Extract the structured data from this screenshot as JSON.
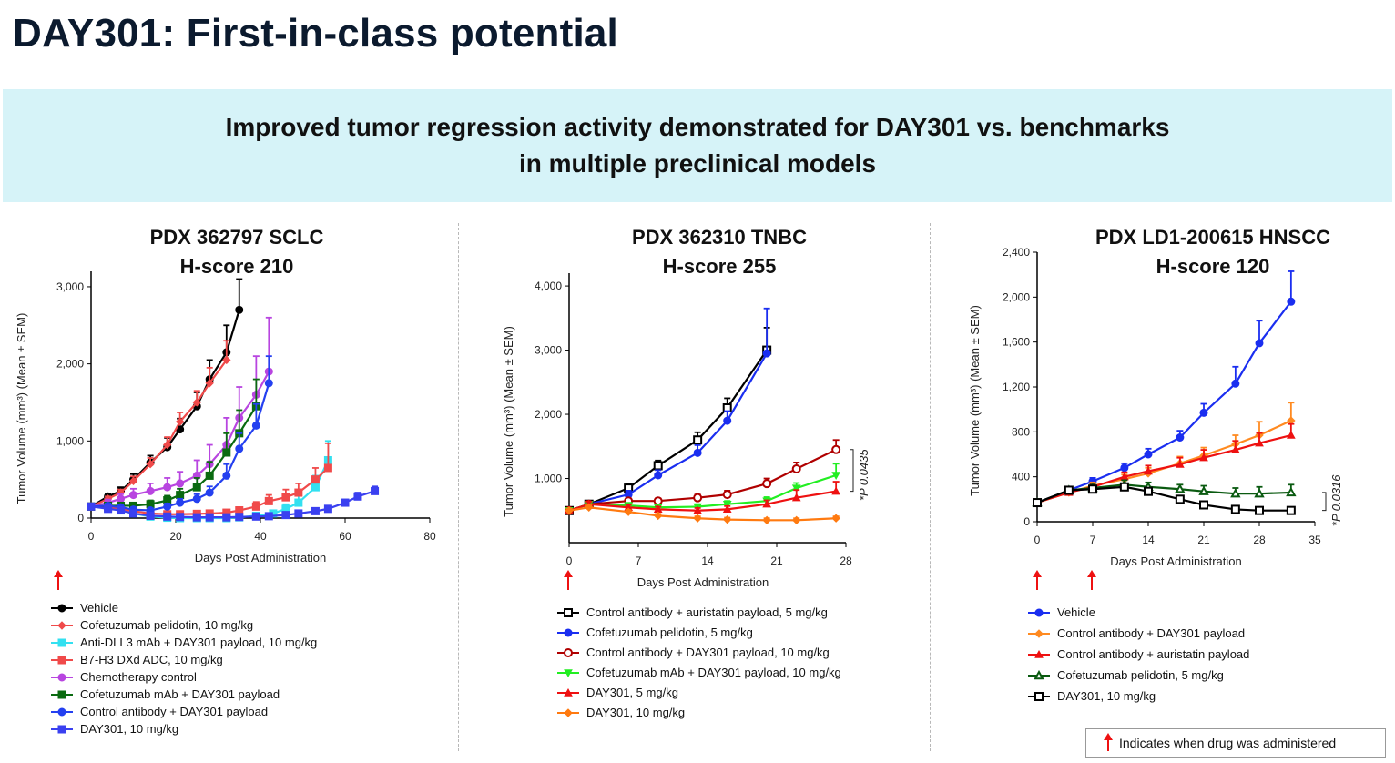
{
  "slide": {
    "title": "DAY301: First-in-class potential",
    "banner_line1": "Improved tumor regression activity demonstrated for DAY301 vs. benchmarks",
    "banner_line2": "in multiple preclinical models",
    "note": "Indicates when drug was administered",
    "arrow_color": "#ee1111"
  },
  "chart_data": [
    {
      "type": "line",
      "title_line1": "PDX 362797 SCLC",
      "title_line2": "H-score 210",
      "xlabel": "Days Post Administration",
      "ylabel": "Tumor Volume (mm³) (Mean ± SEM)",
      "xlim": [
        0,
        80
      ],
      "ylim": [
        0,
        3200
      ],
      "xticks": [
        0,
        20,
        40,
        60,
        80
      ],
      "xtick_labels": [
        "0",
        "20",
        "40",
        "60",
        "80"
      ],
      "yticks": [
        0,
        1000,
        2000,
        3000
      ],
      "ytick_labels": [
        "0",
        "1,000",
        "2,000",
        "3,000"
      ],
      "dosing_days": [
        0
      ],
      "series": [
        {
          "name": "Vehicle",
          "color": "#000000",
          "marker": "circle",
          "x": [
            0,
            4,
            7,
            10,
            14,
            18,
            21,
            25,
            28,
            32,
            35
          ],
          "y": [
            150,
            280,
            350,
            500,
            720,
            920,
            1150,
            1450,
            1800,
            2150,
            2700
          ],
          "err": [
            20,
            40,
            50,
            70,
            90,
            120,
            140,
            180,
            250,
            350,
            400
          ]
        },
        {
          "name": "Cofetuzumab pelidotin, 10 mg/kg",
          "color": "#f04a4a",
          "marker": "diamond",
          "x": [
            0,
            4,
            7,
            10,
            14,
            18,
            21,
            25,
            28,
            32
          ],
          "y": [
            150,
            250,
            330,
            480,
            700,
            950,
            1250,
            1500,
            1750,
            2050
          ],
          "err": [
            20,
            30,
            40,
            60,
            80,
            100,
            120,
            150,
            200,
            250
          ]
        },
        {
          "name": "Anti-DLL3 mAb + DAY301 payload, 10 mg/kg",
          "color": "#33e0f0",
          "marker": "square",
          "x": [
            0,
            4,
            7,
            10,
            14,
            18,
            21,
            25,
            28,
            32,
            35,
            39,
            43,
            46,
            49,
            53,
            56
          ],
          "y": [
            150,
            130,
            100,
            60,
            20,
            5,
            0,
            0,
            0,
            0,
            10,
            30,
            60,
            120,
            200,
            400,
            750
          ],
          "err": [
            20,
            20,
            20,
            15,
            10,
            5,
            5,
            5,
            5,
            5,
            10,
            20,
            40,
            60,
            90,
            150,
            250
          ]
        },
        {
          "name": "B7-H3 DXd ADC, 10 mg/kg",
          "color": "#f04a4a",
          "marker": "square",
          "x": [
            0,
            4,
            7,
            10,
            14,
            18,
            21,
            25,
            28,
            32,
            35,
            39,
            42,
            46,
            49,
            53,
            56
          ],
          "y": [
            150,
            140,
            120,
            90,
            60,
            50,
            50,
            55,
            60,
            70,
            100,
            150,
            220,
            270,
            330,
            500,
            650
          ],
          "err": [
            20,
            20,
            20,
            20,
            15,
            15,
            15,
            15,
            20,
            20,
            40,
            60,
            80,
            100,
            120,
            150,
            320
          ]
        },
        {
          "name": "Chemotherapy control",
          "color": "#b845e0",
          "marker": "circle",
          "x": [
            0,
            4,
            7,
            10,
            14,
            18,
            21,
            25,
            28,
            32,
            35,
            39,
            42
          ],
          "y": [
            150,
            200,
            250,
            300,
            350,
            400,
            450,
            550,
            700,
            950,
            1300,
            1600,
            1900
          ],
          "err": [
            20,
            40,
            60,
            80,
            100,
            120,
            150,
            200,
            250,
            350,
            400,
            500,
            700
          ]
        },
        {
          "name": "Cofetuzumab mAb + DAY301 payload",
          "color": "#0a6a10",
          "marker": "square",
          "x": [
            0,
            4,
            7,
            10,
            14,
            18,
            21,
            25,
            28,
            32,
            35,
            39
          ],
          "y": [
            150,
            160,
            160,
            160,
            180,
            230,
            300,
            400,
            550,
            850,
            1100,
            1450
          ],
          "err": [
            20,
            30,
            30,
            40,
            50,
            60,
            80,
            120,
            180,
            250,
            300,
            350
          ]
        },
        {
          "name": "Control antibody + DAY301 payload",
          "color": "#2440f0",
          "marker": "circle",
          "x": [
            0,
            4,
            7,
            10,
            14,
            18,
            21,
            25,
            28,
            32,
            35,
            39,
            42
          ],
          "y": [
            150,
            160,
            140,
            110,
            100,
            150,
            200,
            250,
            330,
            550,
            900,
            1200,
            1750
          ],
          "err": [
            20,
            30,
            30,
            30,
            30,
            40,
            50,
            60,
            80,
            150,
            200,
            280,
            350
          ]
        },
        {
          "name": "DAY301, 10 mg/kg",
          "color": "#3a40f0",
          "marker": "square",
          "x": [
            0,
            4,
            7,
            10,
            14,
            18,
            21,
            25,
            28,
            32,
            35,
            39,
            42,
            46,
            49,
            53,
            56,
            60,
            63,
            67
          ],
          "y": [
            150,
            120,
            100,
            60,
            30,
            20,
            15,
            10,
            10,
            10,
            15,
            20,
            25,
            40,
            60,
            90,
            120,
            200,
            280,
            350
          ],
          "err": [
            20,
            20,
            20,
            15,
            10,
            10,
            10,
            5,
            5,
            5,
            5,
            5,
            10,
            10,
            15,
            20,
            30,
            40,
            50,
            60
          ]
        }
      ]
    },
    {
      "type": "line",
      "title_line1": "PDX 362310 TNBC",
      "title_line2": "H-score 255",
      "xlabel": "Days Post Administration",
      "ylabel": "Tumor Volume (mm³) (Mean ± SEM)",
      "xlim": [
        0,
        28
      ],
      "ylim": [
        0,
        4200
      ],
      "xticks": [
        0,
        7,
        14,
        21,
        28
      ],
      "xtick_labels": [
        "0",
        "7",
        "14",
        "21",
        "28"
      ],
      "yticks": [
        1000,
        2000,
        3000,
        4000
      ],
      "ytick_labels": [
        "1,000",
        "2,000",
        "3,000",
        "4,000"
      ],
      "annotation": "*P 0.0435",
      "dosing_days": [
        0
      ],
      "series": [
        {
          "name": "Control antibody + auristatin payload, 5 mg/kg",
          "color": "#000000",
          "marker": "open-square",
          "x": [
            0,
            2,
            6,
            9,
            13,
            16,
            20
          ],
          "y": [
            500,
            600,
            850,
            1200,
            1600,
            2100,
            3000
          ],
          "err": [
            30,
            40,
            60,
            80,
            120,
            150,
            350
          ]
        },
        {
          "name": "Cofetuzumab pelidotin, 5 mg/kg",
          "color": "#1a2ef0",
          "marker": "circle",
          "x": [
            0,
            2,
            6,
            9,
            13,
            16,
            20
          ],
          "y": [
            500,
            600,
            750,
            1050,
            1400,
            1900,
            2950
          ],
          "err": [
            30,
            40,
            60,
            80,
            120,
            150,
            700
          ]
        },
        {
          "name": "Control antibody + DAY301 payload, 10 mg/kg",
          "color": "#b00000",
          "marker": "open-circle",
          "x": [
            0,
            2,
            6,
            9,
            13,
            16,
            20,
            23,
            27
          ],
          "y": [
            500,
            600,
            650,
            650,
            700,
            750,
            920,
            1150,
            1450
          ],
          "err": [
            30,
            40,
            40,
            40,
            50,
            60,
            80,
            100,
            150
          ]
        },
        {
          "name": "Cofetuzumab mAb + DAY301 payload, 10 mg/kg",
          "color": "#22ee22",
          "marker": "triangle-down",
          "x": [
            0,
            2,
            6,
            9,
            13,
            16,
            20,
            23,
            27
          ],
          "y": [
            500,
            600,
            580,
            550,
            560,
            600,
            650,
            850,
            1050
          ],
          "err": [
            30,
            40,
            40,
            40,
            40,
            50,
            60,
            80,
            180
          ]
        },
        {
          "name": "DAY301, 5 mg/kg",
          "color": "#ee1111",
          "marker": "triangle",
          "x": [
            0,
            2,
            6,
            9,
            13,
            16,
            20,
            23,
            27
          ],
          "y": [
            500,
            600,
            550,
            520,
            500,
            520,
            600,
            700,
            800
          ],
          "err": [
            30,
            40,
            40,
            40,
            40,
            50,
            60,
            120,
            150
          ]
        },
        {
          "name": "DAY301, 10 mg/kg",
          "color": "#ff7a10",
          "marker": "diamond",
          "x": [
            0,
            2,
            6,
            9,
            13,
            16,
            20,
            23,
            27
          ],
          "y": [
            500,
            550,
            480,
            420,
            380,
            360,
            350,
            350,
            380
          ],
          "err": [
            30,
            30,
            30,
            30,
            30,
            30,
            30,
            30,
            30
          ]
        }
      ]
    },
    {
      "type": "line",
      "title_line1": "PDX LD1-200615 HNSCC",
      "title_line2": "H-score 120",
      "xlabel": "Days Post Administration",
      "ylabel": "Tumor Volume (mm³) (Mean ± SEM)",
      "xlim": [
        0,
        35
      ],
      "ylim": [
        0,
        2400
      ],
      "xticks": [
        0,
        7,
        14,
        21,
        28,
        35
      ],
      "xtick_labels": [
        "0",
        "7",
        "14",
        "21",
        "28",
        "35"
      ],
      "yticks": [
        0,
        400,
        800,
        1200,
        1600,
        2000,
        2400
      ],
      "ytick_labels": [
        "0",
        "400",
        "800",
        "1,200",
        "1,600",
        "2,000",
        "2,400"
      ],
      "annotation": "*P 0.0316",
      "dosing_days": [
        0,
        7
      ],
      "series": [
        {
          "name": "Vehicle",
          "color": "#1a2ef0",
          "marker": "circle",
          "x": [
            0,
            4,
            7,
            11,
            14,
            18,
            21,
            25,
            28,
            32
          ],
          "y": [
            170,
            280,
            360,
            480,
            600,
            750,
            970,
            1230,
            1590,
            1960
          ],
          "err": [
            20,
            30,
            30,
            40,
            50,
            60,
            80,
            150,
            200,
            270
          ]
        },
        {
          "name": "Control antibody + DAY301 payload",
          "color": "#ff8a20",
          "marker": "diamond",
          "x": [
            0,
            4,
            7,
            11,
            14,
            18,
            21,
            25,
            28,
            32
          ],
          "y": [
            170,
            260,
            320,
            380,
            430,
            520,
            590,
            690,
            770,
            900
          ],
          "err": [
            20,
            30,
            30,
            40,
            50,
            60,
            70,
            80,
            120,
            160
          ]
        },
        {
          "name": "Control antibody + auristatin payload",
          "color": "#ee1111",
          "marker": "triangle",
          "x": [
            0,
            4,
            7,
            11,
            14,
            18,
            21,
            25,
            28,
            32
          ],
          "y": [
            170,
            260,
            310,
            400,
            450,
            510,
            570,
            640,
            700,
            770
          ],
          "err": [
            20,
            30,
            30,
            40,
            50,
            60,
            70,
            80,
            90,
            100
          ]
        },
        {
          "name": "Cofetuzumab pelidotin, 5 mg/kg",
          "color": "#0a5a10",
          "marker": "open-triangle",
          "x": [
            0,
            4,
            7,
            11,
            14,
            18,
            21,
            25,
            28,
            32
          ],
          "y": [
            170,
            280,
            300,
            330,
            310,
            290,
            270,
            250,
            250,
            260
          ],
          "err": [
            20,
            30,
            30,
            40,
            40,
            40,
            50,
            50,
            60,
            70
          ]
        },
        {
          "name": "DAY301, 10 mg/kg",
          "color": "#000000",
          "marker": "open-square",
          "x": [
            0,
            4,
            7,
            11,
            14,
            18,
            21,
            25,
            28,
            32
          ],
          "y": [
            170,
            280,
            290,
            310,
            270,
            200,
            150,
            110,
            100,
            100
          ],
          "err": [
            20,
            20,
            20,
            20,
            20,
            20,
            20,
            10,
            10,
            10
          ]
        }
      ]
    }
  ]
}
